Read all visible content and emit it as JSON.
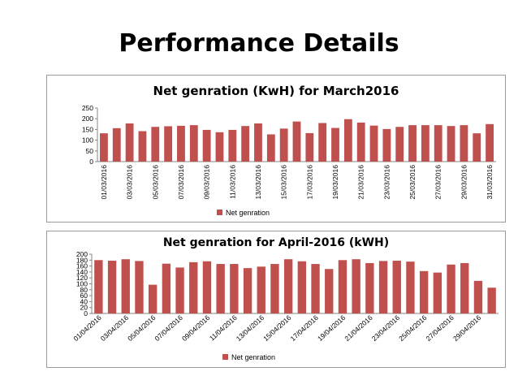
{
  "slide": {
    "title": "Performance Details"
  },
  "chart_data": [
    {
      "type": "bar",
      "title": "Net genration  (KwH) for March2016",
      "xlabel": "",
      "ylabel": "",
      "ylim": [
        0,
        250
      ],
      "yticks": [
        0,
        50,
        100,
        150,
        200,
        250
      ],
      "grid": false,
      "legend": "bottom",
      "bar_color": "#c0504d",
      "categories": [
        "01/03/2016",
        "02/03/2016",
        "03/03/2016",
        "04/03/2016",
        "05/03/2016",
        "06/03/2016",
        "07/03/2016",
        "08/03/2016",
        "09/03/2016",
        "10/03/2016",
        "11/03/2016",
        "12/03/2016",
        "13/03/2016",
        "14/03/2016",
        "15/03/2016",
        "16/03/2016",
        "17/03/2016",
        "18/03/2016",
        "19/03/2016",
        "20/03/2016",
        "21/03/2016",
        "22/03/2016",
        "23/03/2016",
        "24/03/2016",
        "25/03/2016",
        "26/03/2016",
        "27/03/2016",
        "28/03/2016",
        "29/03/2016",
        "30/03/2016",
        "31/03/2016"
      ],
      "tick_labels": [
        "01/03/2016",
        "",
        "03/03/2016",
        "",
        "05/03/2016",
        "",
        "07/03/2016",
        "",
        "09/03/2016",
        "",
        "11/03/2016",
        "",
        "13/03/2016",
        "",
        "15/03/2016",
        "",
        "17/03/2016",
        "",
        "19/03/2016",
        "",
        "21/03/2016",
        "",
        "23/03/2016",
        "",
        "25/03/2016",
        "",
        "27/03/2016",
        "",
        "29/03/2016",
        "",
        "31/03/2016"
      ],
      "series": [
        {
          "name": "Net genration",
          "values": [
            132,
            156,
            178,
            142,
            162,
            165,
            167,
            170,
            148,
            137,
            148,
            166,
            178,
            127,
            154,
            187,
            133,
            180,
            157,
            198,
            182,
            168,
            152,
            162,
            170,
            170,
            170,
            166,
            170,
            132,
            175
          ]
        }
      ]
    },
    {
      "type": "bar",
      "title": "Net genration for April-2016 (kWH)",
      "xlabel": "",
      "ylabel": "",
      "ylim": [
        0,
        200
      ],
      "yticks": [
        0,
        20,
        40,
        60,
        80,
        100,
        120,
        140,
        160,
        180,
        200
      ],
      "grid": false,
      "legend": "bottom",
      "bar_color": "#c0504d",
      "categories": [
        "01/04/2016",
        "02/04/2016",
        "03/04/2016",
        "04/04/2016",
        "05/04/2016",
        "06/04/2016",
        "07/04/2016",
        "08/04/2016",
        "09/04/2016",
        "10/04/2016",
        "11/04/2016",
        "12/04/2016",
        "13/04/2016",
        "14/04/2016",
        "15/04/2016",
        "16/04/2016",
        "17/04/2016",
        "18/04/2016",
        "19/04/2016",
        "20/04/2016",
        "21/04/2016",
        "22/04/2016",
        "23/04/2016",
        "24/04/2016",
        "25/04/2016",
        "26/04/2016",
        "27/04/2016",
        "28/04/2016",
        "29/04/2016",
        "30/04/2016"
      ],
      "tick_labels": [
        "01/04/2016",
        "",
        "03/04/2016",
        "",
        "05/04/2016",
        "",
        "07/04/2016",
        "",
        "09/04/2016",
        "",
        "11/04/2016",
        "",
        "13/04/2016",
        "",
        "15/04/2016",
        "",
        "17/04/2016",
        "",
        "19/04/2016",
        "",
        "21/04/2016",
        "",
        "23/04/2016",
        "",
        "25/04/2016",
        "",
        "27/04/2016",
        "",
        "29/04/2016",
        ""
      ],
      "series": [
        {
          "name": "Net genration",
          "values": [
            180,
            178,
            183,
            177,
            97,
            168,
            155,
            173,
            176,
            167,
            167,
            153,
            158,
            167,
            183,
            176,
            167,
            150,
            180,
            183,
            170,
            177,
            178,
            175,
            143,
            138,
            165,
            170,
            110,
            87
          ]
        }
      ]
    }
  ]
}
